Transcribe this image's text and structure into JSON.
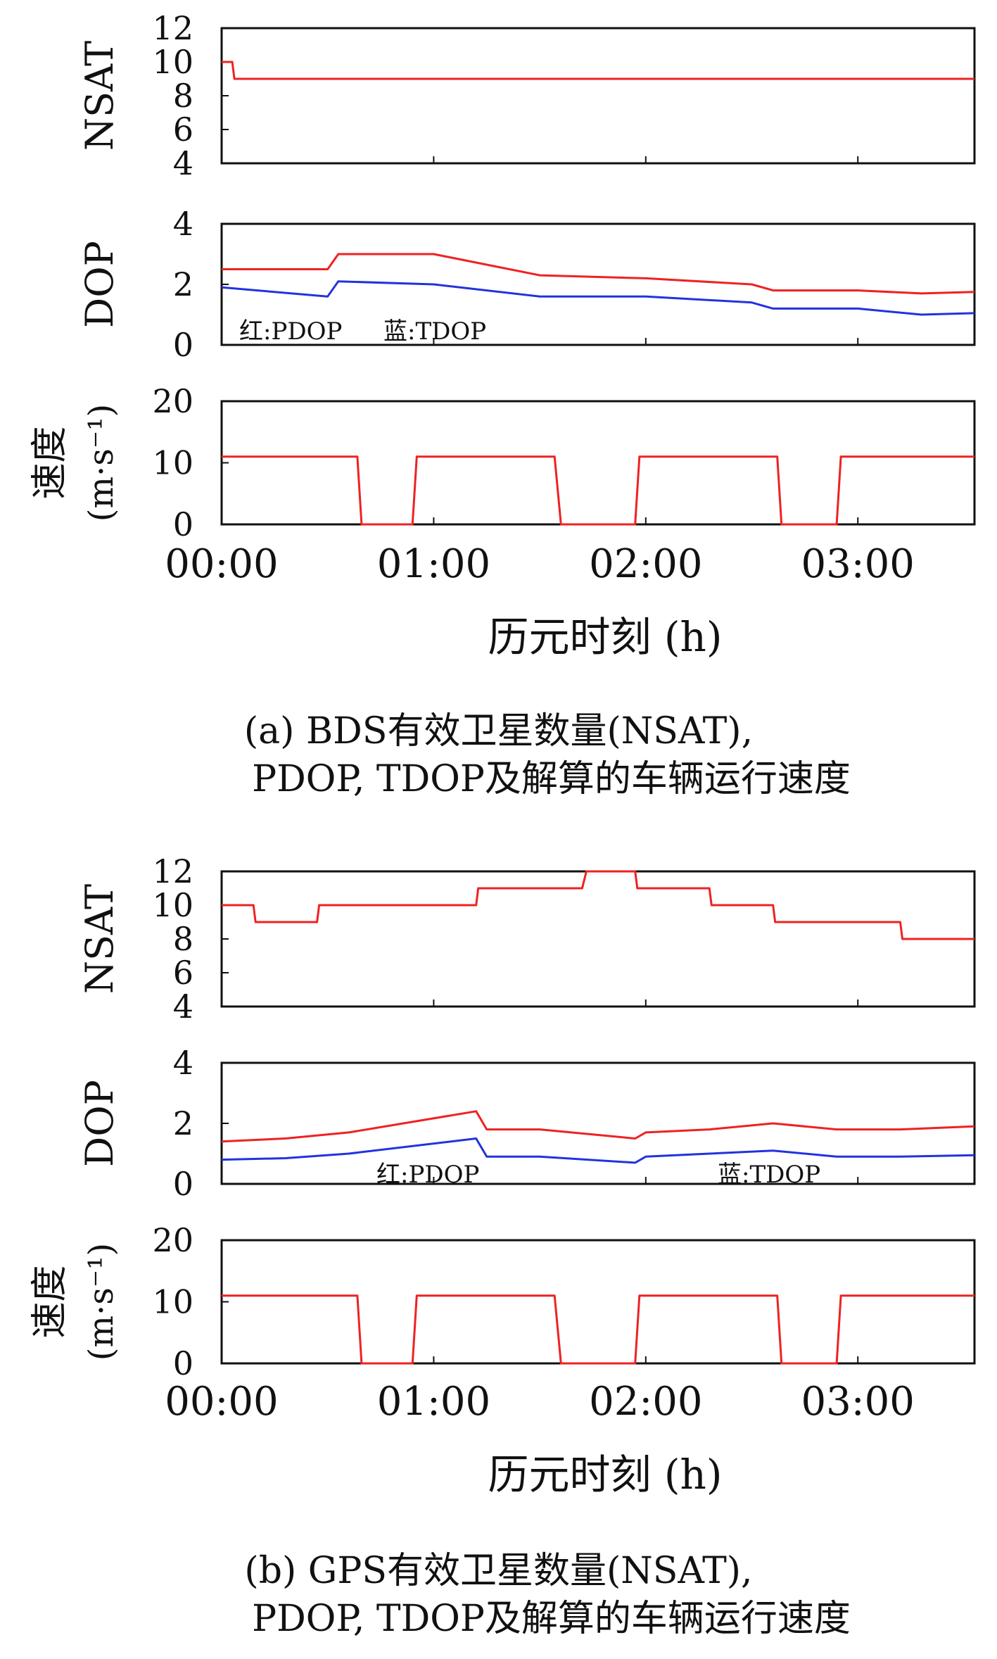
{
  "figure": {
    "x_ticks": [
      "00:00",
      "01:00",
      "02:00",
      "03:00"
    ],
    "x_tick_hours": [
      0,
      1,
      2,
      3
    ],
    "x_range_hours": [
      0,
      3.55
    ],
    "xlabel": "历元时刻 (h)",
    "colors": {
      "pdop_or_main": "#ee2222",
      "tdop": "#2233dd",
      "axis": "#111111"
    }
  },
  "captions": {
    "a_line1": "(a) BDS有效卫星数量(NSAT),",
    "a_line2": "PDOP, TDOP及解算的车辆运行速度",
    "b_line1": "(b) GPS有效卫星数量(NSAT),",
    "b_line2": "PDOP, TDOP及解算的车辆运行速度"
  },
  "chart_data": [
    {
      "type": "line",
      "panel": "a-nsat",
      "ylabel": "NSAT",
      "ylim": [
        4,
        12
      ],
      "yticks": [
        "4",
        "6",
        "8",
        "10",
        "12"
      ],
      "series": [
        {
          "color": "#ee2222",
          "x": [
            0,
            0.05,
            0.06,
            3.55
          ],
          "y": [
            10,
            10,
            9,
            9
          ]
        }
      ]
    },
    {
      "type": "line",
      "panel": "a-dop",
      "ylabel": "DOP",
      "ylim": [
        0,
        4
      ],
      "yticks": [
        "0",
        "2",
        "4"
      ],
      "annotations": [
        "红:PDOP",
        "蓝:TDOP"
      ],
      "series": [
        {
          "name": "PDOP",
          "color": "#ee2222",
          "x": [
            0,
            0.5,
            0.55,
            1.0,
            1.5,
            2.0,
            2.5,
            2.6,
            3.0,
            3.3,
            3.55
          ],
          "y": [
            2.5,
            2.5,
            3.0,
            3.0,
            2.3,
            2.2,
            2.0,
            1.8,
            1.8,
            1.7,
            1.75
          ]
        },
        {
          "name": "TDOP",
          "color": "#2233dd",
          "x": [
            0,
            0.5,
            0.55,
            1.0,
            1.5,
            2.0,
            2.5,
            2.6,
            3.0,
            3.3,
            3.55
          ],
          "y": [
            1.9,
            1.6,
            2.1,
            2.0,
            1.6,
            1.6,
            1.4,
            1.2,
            1.2,
            1.0,
            1.05
          ]
        }
      ]
    },
    {
      "type": "line",
      "panel": "a-speed",
      "ylabel": "速度 (m·s⁻¹)",
      "ylim": [
        0,
        20
      ],
      "yticks": [
        "0",
        "10",
        "20"
      ],
      "series": [
        {
          "color": "#ee2222",
          "x": [
            0,
            0.64,
            0.66,
            0.9,
            0.92,
            1.57,
            1.6,
            1.95,
            1.97,
            2.62,
            2.64,
            2.9,
            2.92,
            3.55
          ],
          "y": [
            11,
            11,
            0,
            0,
            11,
            11,
            0,
            0,
            11,
            11,
            0,
            0,
            11,
            11
          ]
        }
      ]
    },
    {
      "type": "line",
      "panel": "b-nsat",
      "ylabel": "NSAT",
      "ylim": [
        4,
        12
      ],
      "yticks": [
        "4",
        "6",
        "8",
        "10",
        "12"
      ],
      "series": [
        {
          "color": "#ee2222",
          "x": [
            0,
            0.15,
            0.16,
            0.45,
            0.46,
            1.2,
            1.21,
            1.7,
            1.72,
            1.95,
            1.96,
            2.3,
            2.31,
            2.6,
            2.61,
            2.9,
            2.91,
            3.2,
            3.21,
            3.55
          ],
          "y": [
            10,
            10,
            9,
            9,
            10,
            10,
            11,
            11,
            12,
            12,
            11,
            11,
            10,
            10,
            9,
            9,
            9,
            9,
            8,
            8
          ]
        }
      ]
    },
    {
      "type": "line",
      "panel": "b-dop",
      "ylabel": "DOP",
      "ylim": [
        0,
        4
      ],
      "yticks": [
        "0",
        "2",
        "4"
      ],
      "annotations": [
        "红:PDOP",
        "蓝:TDOP"
      ],
      "series": [
        {
          "name": "PDOP",
          "color": "#ee2222",
          "x": [
            0,
            0.3,
            0.6,
            1.2,
            1.25,
            1.5,
            1.95,
            2.0,
            2.3,
            2.6,
            2.9,
            3.2,
            3.55
          ],
          "y": [
            1.4,
            1.5,
            1.7,
            2.4,
            1.8,
            1.8,
            1.5,
            1.7,
            1.8,
            2.0,
            1.8,
            1.8,
            1.9
          ]
        },
        {
          "name": "TDOP",
          "color": "#2233dd",
          "x": [
            0,
            0.3,
            0.6,
            1.2,
            1.25,
            1.5,
            1.95,
            2.0,
            2.3,
            2.6,
            2.9,
            3.2,
            3.55
          ],
          "y": [
            0.8,
            0.85,
            1.0,
            1.5,
            0.9,
            0.9,
            0.7,
            0.9,
            1.0,
            1.1,
            0.9,
            0.9,
            0.95
          ]
        }
      ]
    },
    {
      "type": "line",
      "panel": "b-speed",
      "ylabel": "速度 (m·s⁻¹)",
      "ylim": [
        0,
        20
      ],
      "yticks": [
        "0",
        "10",
        "20"
      ],
      "series": [
        {
          "color": "#ee2222",
          "x": [
            0,
            0.64,
            0.66,
            0.9,
            0.92,
            1.57,
            1.6,
            1.95,
            1.97,
            2.62,
            2.64,
            2.9,
            2.92,
            3.55
          ],
          "y": [
            11,
            11,
            0,
            0,
            11,
            11,
            0,
            0,
            11,
            11,
            0,
            0,
            11,
            11
          ]
        }
      ]
    }
  ]
}
